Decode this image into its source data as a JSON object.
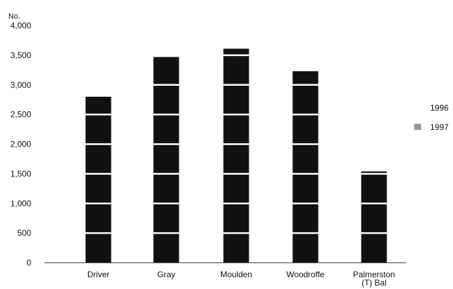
{
  "chart_data": {
    "type": "bar",
    "ylabel": "No.",
    "ylim": [
      0,
      4000
    ],
    "yticks": [
      0,
      500,
      1000,
      1500,
      2000,
      2500,
      3000,
      3500,
      4000
    ],
    "ytick_labels": [
      "0",
      "500",
      "1,000",
      "1,500",
      "2,000",
      "2,500",
      "3,000",
      "3,500",
      "4,000"
    ],
    "categories": [
      "Driver",
      "Gray",
      "Moulden",
      "Woodroffe",
      "Palmerston (T) Bal"
    ],
    "category_lines": [
      [
        "Driver"
      ],
      [
        "Gray"
      ],
      [
        "Moulden"
      ],
      [
        "Woodroffe"
      ],
      [
        "Palmerston",
        "(T) Bal"
      ]
    ],
    "series": [
      {
        "name": "1996",
        "values": [
          0,
          0,
          0,
          0,
          0
        ],
        "color": "#ffffff"
      },
      {
        "name": "1997",
        "values": [
          2800,
          3470,
          3610,
          3230,
          1540
        ],
        "color": "#111111"
      }
    ],
    "legend_placement": "right",
    "grid": false
  }
}
